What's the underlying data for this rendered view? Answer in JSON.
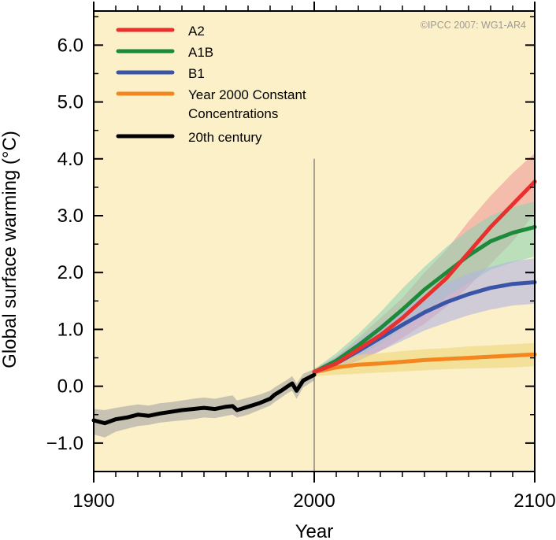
{
  "chart_data": {
    "type": "line",
    "title": "",
    "xlabel": "Year",
    "ylabel": "Global surface warming (°C)",
    "xlim": [
      1900,
      2100
    ],
    "ylim": [
      -1.5,
      6.6
    ],
    "x_ticks": [
      1900,
      2000,
      2100
    ],
    "x_tick_labels": [
      "1900",
      "2000",
      "2100"
    ],
    "y_ticks": [
      -1.0,
      0.0,
      1.0,
      2.0,
      3.0,
      4.0,
      5.0,
      6.0
    ],
    "y_tick_labels": [
      "−1.0",
      "0.0",
      "1.0",
      "2.0",
      "3.0",
      "4.0",
      "5.0",
      "6.0"
    ],
    "divider_year": 2000,
    "divider_top": 4.0,
    "background_color": "#fcf0c8",
    "grid": false,
    "copyright": "©IPCC  2007: WG1-AR4",
    "legend_position": "top-left",
    "series": [
      {
        "name": "A2",
        "color": "#e8302f",
        "band_color": "#ef9a96",
        "x": [
          2000,
          2010,
          2020,
          2030,
          2040,
          2050,
          2060,
          2070,
          2080,
          2090,
          2100
        ],
        "y": [
          0.25,
          0.4,
          0.65,
          0.9,
          1.2,
          1.55,
          1.9,
          2.35,
          2.8,
          3.2,
          3.6
        ],
        "lower": [
          0.2,
          0.3,
          0.45,
          0.62,
          0.85,
          1.1,
          1.4,
          1.75,
          2.15,
          2.55,
          3.05
        ],
        "upper": [
          0.3,
          0.52,
          0.85,
          1.2,
          1.55,
          2.0,
          2.4,
          2.9,
          3.35,
          3.75,
          4.1
        ]
      },
      {
        "name": "A1B",
        "color": "#1d8a3b",
        "band_color": "#8fd2b2",
        "x": [
          2000,
          2010,
          2020,
          2030,
          2040,
          2050,
          2060,
          2070,
          2080,
          2090,
          2100
        ],
        "y": [
          0.25,
          0.45,
          0.72,
          1.02,
          1.35,
          1.7,
          2.0,
          2.3,
          2.55,
          2.7,
          2.8
        ],
        "lower": [
          0.2,
          0.34,
          0.52,
          0.75,
          1.0,
          1.3,
          1.58,
          1.82,
          2.05,
          2.18,
          2.28
        ],
        "upper": [
          0.3,
          0.58,
          0.92,
          1.3,
          1.72,
          2.1,
          2.45,
          2.75,
          3.0,
          3.15,
          3.25
        ]
      },
      {
        "name": "B1",
        "color": "#3a55a8",
        "band_color": "#b0b4e2",
        "x": [
          2000,
          2010,
          2020,
          2030,
          2040,
          2050,
          2060,
          2070,
          2080,
          2090,
          2100
        ],
        "y": [
          0.25,
          0.4,
          0.62,
          0.85,
          1.08,
          1.3,
          1.48,
          1.62,
          1.73,
          1.8,
          1.83
        ],
        "lower": [
          0.2,
          0.3,
          0.45,
          0.62,
          0.8,
          0.98,
          1.12,
          1.25,
          1.35,
          1.42,
          1.45
        ],
        "upper": [
          0.3,
          0.52,
          0.8,
          1.08,
          1.35,
          1.6,
          1.82,
          1.98,
          2.1,
          2.2,
          2.25
        ]
      },
      {
        "name": "Year 2000 Constant Concentrations",
        "color": "#f3861f",
        "band_color": "#ecd779",
        "x": [
          2000,
          2010,
          2020,
          2030,
          2040,
          2050,
          2060,
          2070,
          2080,
          2090,
          2100
        ],
        "y": [
          0.25,
          0.33,
          0.38,
          0.4,
          0.43,
          0.46,
          0.48,
          0.5,
          0.52,
          0.54,
          0.56
        ],
        "lower": [
          0.18,
          0.2,
          0.22,
          0.24,
          0.26,
          0.28,
          0.3,
          0.31,
          0.32,
          0.33,
          0.35
        ],
        "upper": [
          0.32,
          0.45,
          0.55,
          0.58,
          0.62,
          0.65,
          0.67,
          0.7,
          0.72,
          0.74,
          0.76
        ]
      },
      {
        "name": "20th century",
        "color": "#000000",
        "band_color": "#a3a3a3",
        "x": [
          1900,
          1905,
          1910,
          1915,
          1920,
          1925,
          1930,
          1935,
          1940,
          1945,
          1950,
          1955,
          1960,
          1963,
          1965,
          1970,
          1975,
          1980,
          1982,
          1985,
          1988,
          1990,
          1992,
          1995,
          2000
        ],
        "y": [
          -0.6,
          -0.65,
          -0.58,
          -0.55,
          -0.5,
          -0.52,
          -0.48,
          -0.45,
          -0.42,
          -0.4,
          -0.38,
          -0.4,
          -0.36,
          -0.35,
          -0.42,
          -0.36,
          -0.3,
          -0.22,
          -0.15,
          -0.08,
          0.0,
          0.05,
          -0.08,
          0.1,
          0.2
        ],
        "lower": [
          -0.85,
          -0.9,
          -0.8,
          -0.75,
          -0.7,
          -0.68,
          -0.64,
          -0.62,
          -0.6,
          -0.58,
          -0.55,
          -0.56,
          -0.52,
          -0.5,
          -0.55,
          -0.5,
          -0.42,
          -0.34,
          -0.28,
          -0.2,
          -0.12,
          -0.08,
          -0.22,
          -0.02,
          0.1
        ],
        "upper": [
          -0.4,
          -0.42,
          -0.38,
          -0.35,
          -0.32,
          -0.34,
          -0.3,
          -0.28,
          -0.25,
          -0.22,
          -0.2,
          -0.22,
          -0.18,
          -0.16,
          -0.25,
          -0.2,
          -0.15,
          -0.08,
          -0.02,
          0.05,
          0.12,
          0.18,
          0.05,
          0.22,
          0.3
        ]
      }
    ]
  }
}
